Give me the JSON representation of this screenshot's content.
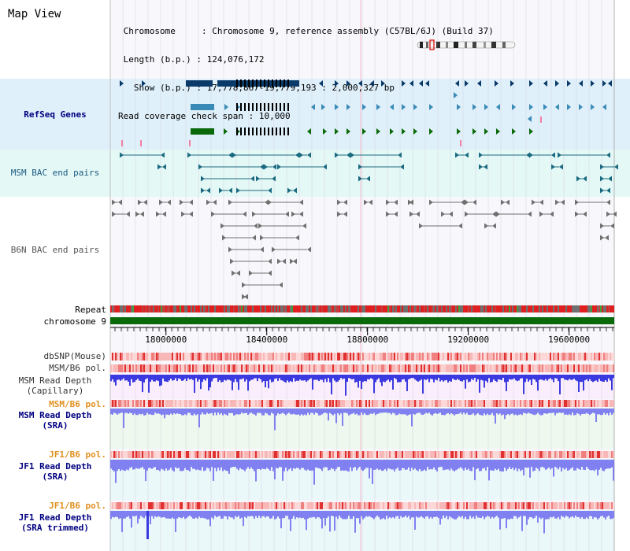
{
  "title": "Map View",
  "info": {
    "chromosome_key": "Chromosome",
    "chromosome_val": "Chromosome 9, reference assembly (C57BL/6J) (Build 37)",
    "length_key": "Length (b.p.)",
    "length_val": "124,076,172",
    "show_key": "Show (b.p.)",
    "show_val": "17,778,867-19,779,193 : 2,000,327 bp",
    "coverage_key": "Read coverage check span",
    "coverage_val": "10,000"
  },
  "axis": {
    "start": 17778867,
    "end": 19779193,
    "ticks": [
      18000000,
      18400000,
      18800000,
      19200000,
      19600000
    ],
    "tick_labels": [
      "18000000",
      "18400000",
      "18800000",
      "19200000",
      "19600000"
    ]
  },
  "tracks": {
    "refseq": "RefSeq Genes",
    "msm_bac": "MSM BAC end pairs",
    "b6n_bac": "B6N BAC end pairs",
    "repeat": "Repeat",
    "chromosome": "chromosome 9",
    "dbsnp": "dbSNP(Mouse)",
    "msm_b6_pol": "MSM/B6 pol.",
    "msm_depth_cap_1": "MSM Read Depth",
    "msm_depth_cap_2": "(Capillary)",
    "msm_b6_pol2": "MSM/B6 pol.",
    "msm_depth_sra_1": "MSM Read Depth",
    "msm_depth_sra_2": "(SRA)",
    "jf1_b6_pol": "JF1/B6 pol.",
    "jf1_depth_sra_1": "JF1 Read Depth",
    "jf1_depth_sra_2": "(SRA)",
    "jf1_b6_pol2": "JF1/B6 pol.",
    "jf1_depth_trim_1": "JF1 Read Depth",
    "jf1_depth_trim_2": "(SRA trimmed)"
  },
  "colors": {
    "refseq_bg": "#dff0fa",
    "msm_bac_bg": "#e4f8f6",
    "refseq_dark": "#0a3a6a",
    "refseq_mid": "#3a8ab8",
    "refseq_green": "#0a6a0a",
    "msm_bac": "#1a6a80",
    "b6n_bac": "#707070",
    "chrom": "#0a6a0a",
    "depth_blue": "#3a3ae0",
    "depth_light": "#8080f0",
    "pol_red": "#e03030"
  }
}
